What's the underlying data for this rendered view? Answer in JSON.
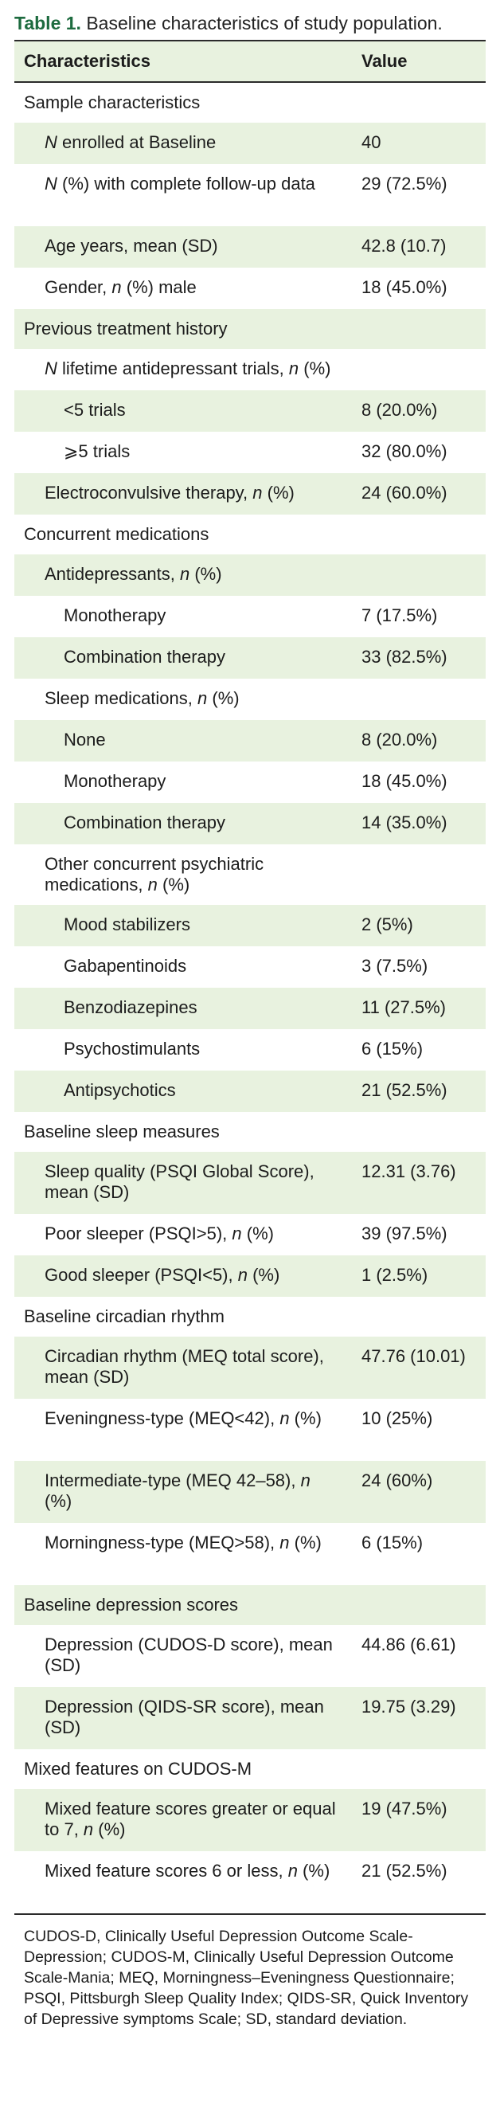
{
  "table": {
    "label": "Table 1.",
    "caption": "Baseline characteristics of study population.",
    "headers": {
      "characteristics": "Characteristics",
      "value": "Value"
    },
    "rows": [
      {
        "indent": 0,
        "shade": false,
        "type": "sec",
        "label": "Sample characteristics",
        "value": ""
      },
      {
        "indent": 1,
        "shade": true,
        "type": "r1",
        "label": "N enrolled at Baseline",
        "value": "40"
      },
      {
        "indent": 1,
        "shade": false,
        "type": "r2",
        "label": "N (%) with complete follow-up data",
        "value": "29 (72.5%)"
      },
      {
        "indent": 1,
        "shade": true,
        "type": "r1",
        "label": "Age years, mean (SD)",
        "value": "42.8 (10.7)"
      },
      {
        "indent": 1,
        "shade": false,
        "type": "r1",
        "label": "Gender, n (%) male",
        "value": "18 (45.0%)"
      },
      {
        "indent": 0,
        "shade": true,
        "type": "sec",
        "label": "Previous treatment history",
        "value": ""
      },
      {
        "indent": 1,
        "shade": false,
        "type": "r1",
        "label": "N lifetime antidepressant trials, n (%)",
        "value": ""
      },
      {
        "indent": 2,
        "shade": true,
        "type": "r1",
        "label": "<5 trials",
        "value": "8 (20.0%)"
      },
      {
        "indent": 2,
        "shade": false,
        "type": "r1",
        "label": "⩾5 trials",
        "value": "32 (80.0%)"
      },
      {
        "indent": 1,
        "shade": true,
        "type": "r1",
        "label": "Electroconvulsive therapy, n (%)",
        "value": "24 (60.0%)"
      },
      {
        "indent": 0,
        "shade": false,
        "type": "sec",
        "label": "Concurrent medications",
        "value": ""
      },
      {
        "indent": 1,
        "shade": true,
        "type": "r1",
        "label": "Antidepressants, n (%)",
        "value": ""
      },
      {
        "indent": 2,
        "shade": false,
        "type": "r1",
        "label": "Monotherapy",
        "value": "7 (17.5%)"
      },
      {
        "indent": 2,
        "shade": true,
        "type": "r1",
        "label": "Combination therapy",
        "value": "33 (82.5%)"
      },
      {
        "indent": 1,
        "shade": false,
        "type": "r1",
        "label": "Sleep medications, n (%)",
        "value": ""
      },
      {
        "indent": 2,
        "shade": true,
        "type": "r1",
        "label": "None",
        "value": "8 (20.0%)"
      },
      {
        "indent": 2,
        "shade": false,
        "type": "r1",
        "label": "Monotherapy",
        "value": "18 (45.0%)"
      },
      {
        "indent": 2,
        "shade": true,
        "type": "r1",
        "label": "Combination therapy",
        "value": "14 (35.0%)"
      },
      {
        "indent": 1,
        "shade": false,
        "type": "r1",
        "label": "Other concurrent psychiatric medications, n (%)",
        "value": ""
      },
      {
        "indent": 2,
        "shade": true,
        "type": "r1",
        "label": "Mood stabilizers",
        "value": "2 (5%)"
      },
      {
        "indent": 2,
        "shade": false,
        "type": "r1",
        "label": "Gabapentinoids",
        "value": "3 (7.5%)"
      },
      {
        "indent": 2,
        "shade": true,
        "type": "r1",
        "label": "Benzodiazepines",
        "value": "11 (27.5%)"
      },
      {
        "indent": 2,
        "shade": false,
        "type": "r1",
        "label": "Psychostimulants",
        "value": "6 (15%)"
      },
      {
        "indent": 2,
        "shade": true,
        "type": "r1",
        "label": "Antipsychotics",
        "value": "21 (52.5%)"
      },
      {
        "indent": 0,
        "shade": false,
        "type": "sec",
        "label": "Baseline sleep measures",
        "value": ""
      },
      {
        "indent": 1,
        "shade": true,
        "type": "r2",
        "label": "Sleep quality (PSQI Global Score), mean (SD)",
        "value": "12.31 (3.76)"
      },
      {
        "indent": 1,
        "shade": false,
        "type": "r1",
        "label": "Poor sleeper (PSQI>5), n (%)",
        "value": "39 (97.5%)"
      },
      {
        "indent": 1,
        "shade": true,
        "type": "r1",
        "label": "Good sleeper (PSQI<5), n (%)",
        "value": "1 (2.5%)"
      },
      {
        "indent": 0,
        "shade": false,
        "type": "sec",
        "label": "Baseline circadian rhythm",
        "value": ""
      },
      {
        "indent": 1,
        "shade": true,
        "type": "r2",
        "label": "Circadian rhythm (MEQ total score), mean (SD)",
        "value": "47.76 (10.01)"
      },
      {
        "indent": 1,
        "shade": false,
        "type": "r2",
        "label": "Eveningness-type (MEQ<42), n (%)",
        "value": "10 (25%)"
      },
      {
        "indent": 1,
        "shade": true,
        "type": "r2",
        "label": "Intermediate-type (MEQ 42–58), n (%)",
        "value": "24 (60%)"
      },
      {
        "indent": 1,
        "shade": false,
        "type": "r2",
        "label": "Morningness-type (MEQ>58), n (%)",
        "value": "6 (15%)"
      },
      {
        "indent": 0,
        "shade": true,
        "type": "sec",
        "label": "Baseline depression scores",
        "value": ""
      },
      {
        "indent": 1,
        "shade": false,
        "type": "r2",
        "label": "Depression (CUDOS-D score), mean (SD)",
        "value": "44.86 (6.61)"
      },
      {
        "indent": 1,
        "shade": true,
        "type": "r2",
        "label": "Depression (QIDS-SR score), mean (SD)",
        "value": "19.75 (3.29)"
      },
      {
        "indent": 0,
        "shade": false,
        "type": "sec",
        "label": "Mixed features on CUDOS-M",
        "value": ""
      },
      {
        "indent": 1,
        "shade": true,
        "type": "r2",
        "label": "Mixed feature scores greater or equal to 7, n (%)",
        "value": "19 (47.5%)"
      },
      {
        "indent": 1,
        "shade": false,
        "type": "r2",
        "label": "Mixed feature scores 6 or less, n (%)",
        "value": "21 (52.5%)"
      }
    ],
    "footnote": "CUDOS-D, Clinically Useful Depression Outcome Scale-Depression; CUDOS-M, Clinically Useful Depression Outcome Scale-Mania; MEQ, Morningness–Eveningness Questionnaire; PSQI, Pittsburgh Sleep Quality Index; QIDS-SR, Quick Inventory of Depressive symptoms Scale; SD, standard deviation."
  }
}
